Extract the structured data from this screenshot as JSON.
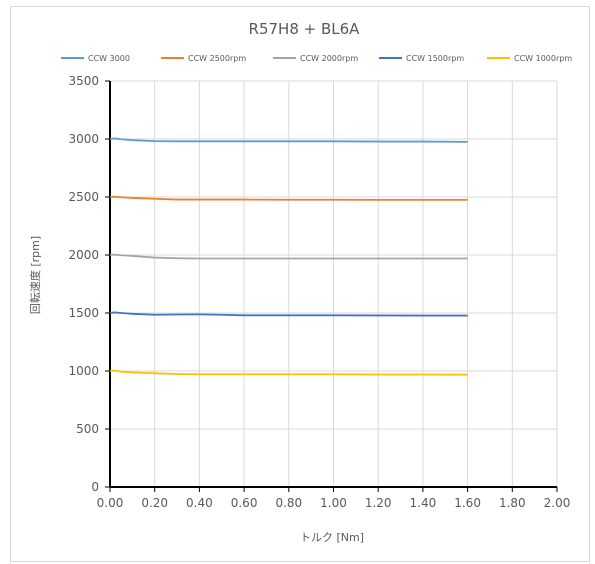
{
  "chart_data": {
    "type": "line",
    "title": "R57H8 + BL6A",
    "xlabel": "トルク [Nm]",
    "ylabel": "回転速度 [rpm]",
    "xlim": [
      0,
      2.0
    ],
    "ylim": [
      0,
      3500
    ],
    "x_ticks": [
      "0.00",
      "0.20",
      "0.40",
      "0.60",
      "0.80",
      "1.00",
      "1.20",
      "1.40",
      "1.60",
      "1.80",
      "2.00"
    ],
    "y_ticks": [
      "0",
      "500",
      "1000",
      "1500",
      "2000",
      "2500",
      "3000",
      "3500"
    ],
    "grid": true,
    "legend_position": "top",
    "series": [
      {
        "name": "CCW 3000",
        "color": "#5b9bd5",
        "x": [
          0,
          0.02,
          0.05,
          0.1,
          0.2,
          0.3,
          0.4,
          0.6,
          0.8,
          1.0,
          1.2,
          1.4,
          1.6
        ],
        "y": [
          3000,
          3005,
          2998,
          2990,
          2982,
          2980,
          2980,
          2980,
          2980,
          2980,
          2978,
          2978,
          2975
        ]
      },
      {
        "name": "CCW 2500rpm",
        "color": "#ed7d31",
        "x": [
          0,
          0.02,
          0.05,
          0.1,
          0.2,
          0.3,
          0.4,
          0.6,
          0.8,
          1.0,
          1.2,
          1.4,
          1.6
        ],
        "y": [
          2500,
          2502,
          2498,
          2492,
          2485,
          2478,
          2478,
          2478,
          2476,
          2476,
          2475,
          2475,
          2475
        ]
      },
      {
        "name": "CCW 2000rpm",
        "color": "#a5a5a5",
        "x": [
          0,
          0.02,
          0.05,
          0.1,
          0.2,
          0.3,
          0.4,
          0.6,
          0.8,
          1.0,
          1.2,
          1.4,
          1.6
        ],
        "y": [
          2000,
          2003,
          1998,
          1992,
          1978,
          1972,
          1970,
          1970,
          1970,
          1970,
          1970,
          1970,
          1970
        ]
      },
      {
        "name": "CCW 1500rpm",
        "color": "#4472c4",
        "x": [
          0,
          0.02,
          0.05,
          0.1,
          0.2,
          0.3,
          0.4,
          0.5,
          0.6,
          0.8,
          1.0,
          1.2,
          1.4,
          1.6
        ],
        "y": [
          1500,
          1505,
          1500,
          1493,
          1485,
          1487,
          1488,
          1485,
          1480,
          1480,
          1480,
          1479,
          1478,
          1478
        ]
      },
      {
        "name": "CCW 1000rpm",
        "color": "#ffc000",
        "x": [
          0,
          0.02,
          0.05,
          0.1,
          0.2,
          0.3,
          0.4,
          0.6,
          0.8,
          1.0,
          1.2,
          1.4,
          1.6
        ],
        "y": [
          1000,
          1003,
          995,
          988,
          980,
          974,
          972,
          972,
          972,
          972,
          970,
          970,
          968
        ]
      }
    ]
  }
}
